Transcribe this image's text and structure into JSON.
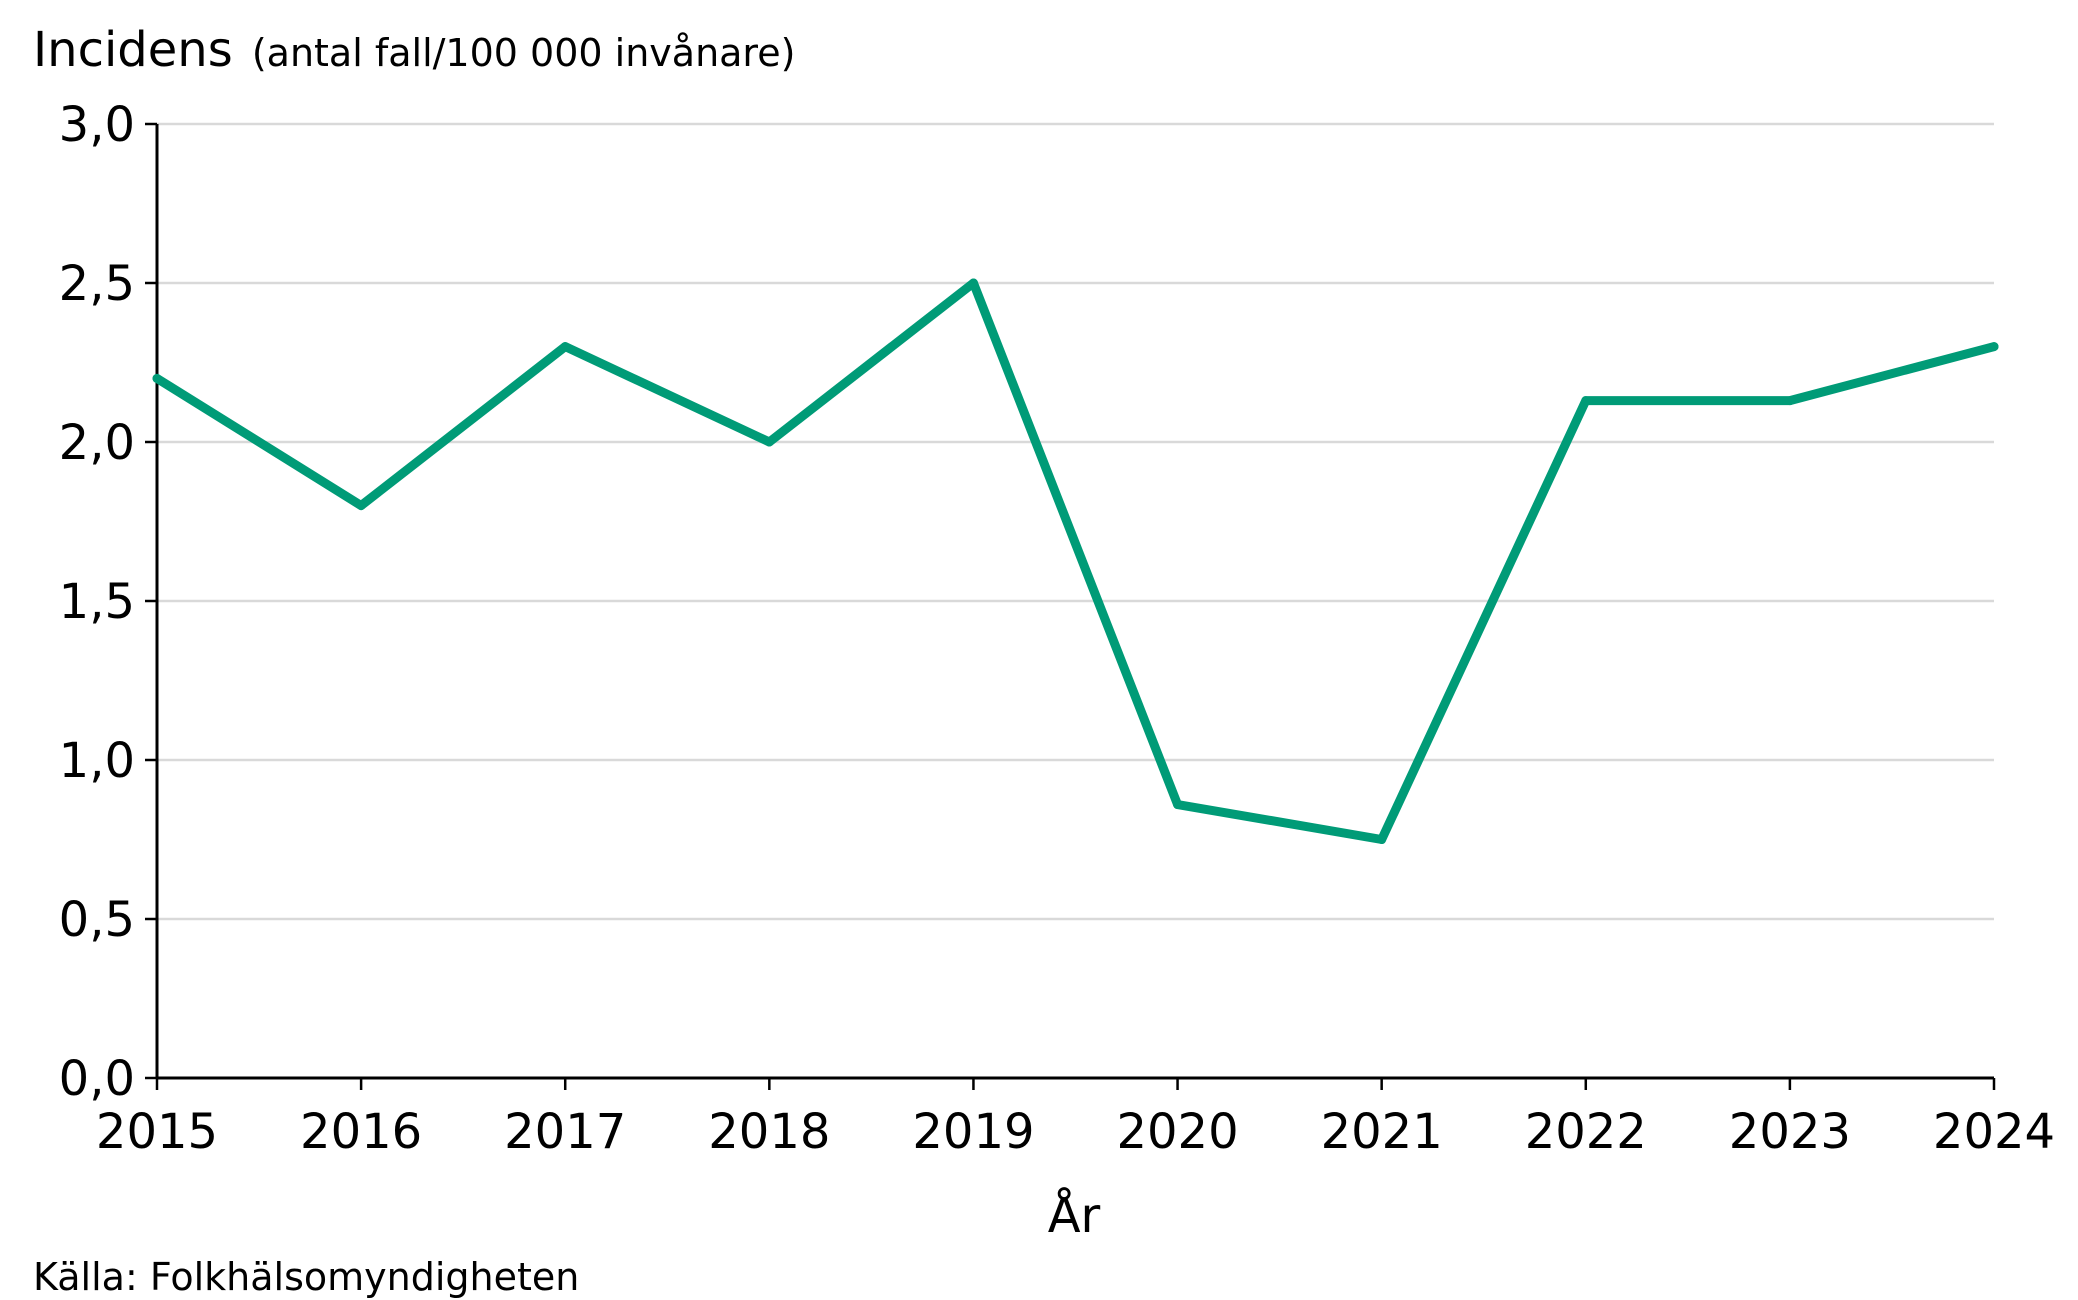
{
  "chart_data": {
    "type": "line",
    "ylabel": "Incidens",
    "ylabel_unit": "(antal fall/100 000 invånare)",
    "xlabel": "År",
    "source": "Källa: Folkhälsomyndigheten",
    "x": [
      "2015",
      "2016",
      "2017",
      "2018",
      "2019",
      "2020",
      "2021",
      "2022",
      "2023",
      "2024"
    ],
    "series": [
      {
        "values": [
          2.2,
          1.8,
          2.3,
          2.0,
          2.5,
          0.86,
          0.75,
          2.13,
          2.13,
          2.3
        ],
        "color": "#009b77"
      }
    ],
    "ylim": [
      0,
      3
    ],
    "yticks": [
      0,
      0.5,
      1.0,
      1.5,
      2.0,
      2.5,
      3.0
    ],
    "ytick_labels": [
      "0,0",
      "0,5",
      "1,0",
      "1,5",
      "2,0",
      "2,5",
      "3,0"
    ],
    "grid": true,
    "grid_color": "#d9d9d9",
    "axis_color": "#000000"
  }
}
